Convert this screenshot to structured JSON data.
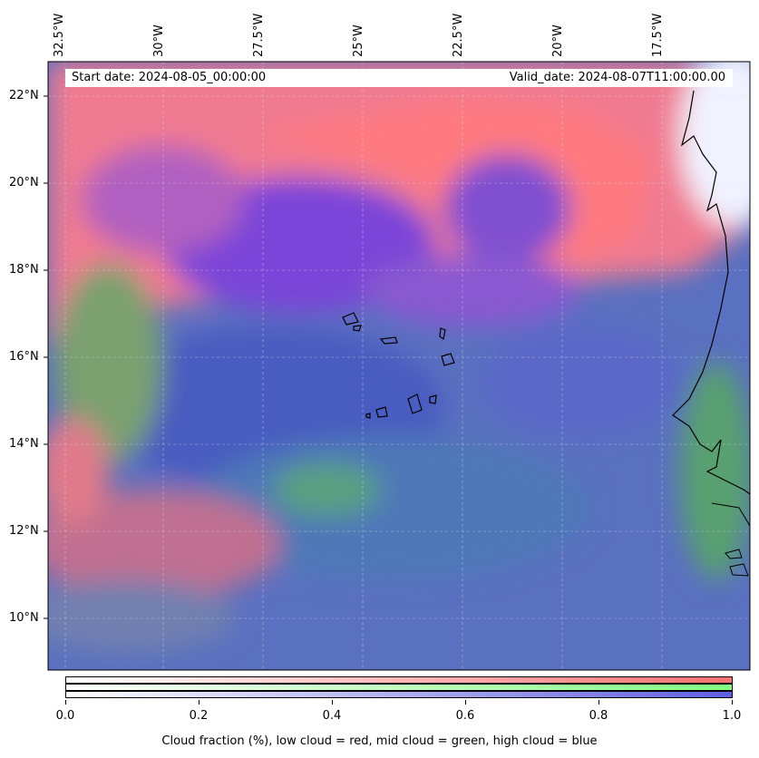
{
  "map": {
    "longitude_labels": [
      "32.5°W",
      "30°W",
      "27.5°W",
      "25°W",
      "22.5°W",
      "20°W",
      "17.5°W"
    ],
    "latitude_labels": [
      "22°N",
      "20°N",
      "18°N",
      "16°N",
      "14°N",
      "12°N",
      "10°N"
    ],
    "start_date": "Start date: 2024-08-05_00:00:00",
    "valid_date": "Valid_date: 2024-08-07T11:00:00.00"
  },
  "colorbar": {
    "ticks": [
      "0.0",
      "0.2",
      "0.4",
      "0.6",
      "0.8",
      "1.0"
    ],
    "label": "Cloud fraction (%), low cloud = red, mid cloud = green, high cloud = blue",
    "colors": {
      "low": "#ff7070",
      "mid": "#80ff80",
      "high": "#6060e0"
    }
  }
}
